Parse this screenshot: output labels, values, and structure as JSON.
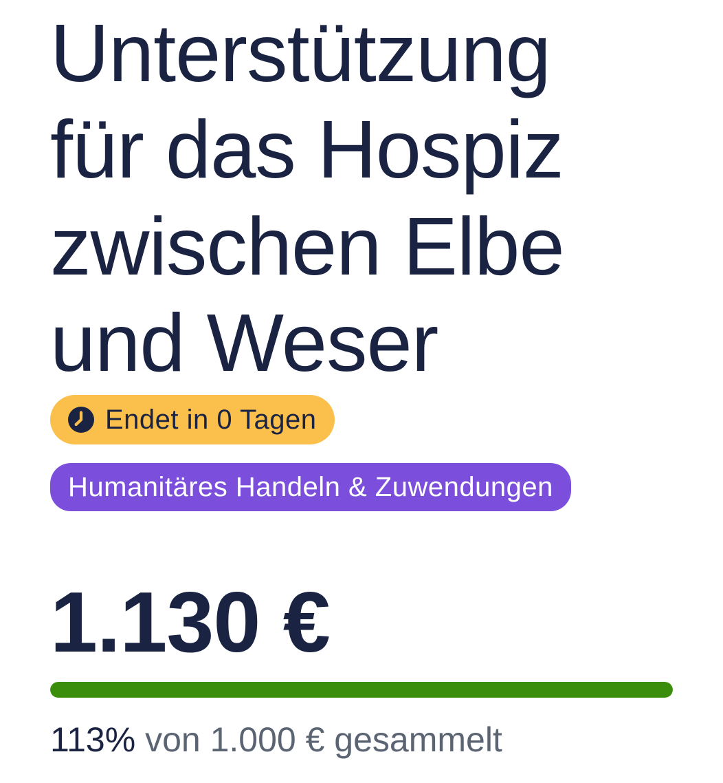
{
  "campaign": {
    "title": "Unterstützung\nfür das Hospiz\nzwischen Elbe\nund Weser",
    "title_color": "#1A2342",
    "deadline_badge": {
      "label": "Endet in 0 Tagen",
      "icon": "clock-icon",
      "bg_color": "#FBBF4C",
      "text_color": "#1A2342"
    },
    "category_badge": {
      "label": "Humanitäres Handeln & Zuwendungen",
      "bg_color": "#7B4FDB",
      "text_color": "#FFFFFF"
    },
    "amount_raised": "1.130 €",
    "progress": {
      "percent": 113,
      "bar_color": "#3A8E0B",
      "percent_label": "113%",
      "suffix_label": " von 1.000 € gesammelt",
      "goal_amount": "1.000 €",
      "percent_text_color": "#1A2342",
      "suffix_text_color": "#5B6472"
    }
  }
}
